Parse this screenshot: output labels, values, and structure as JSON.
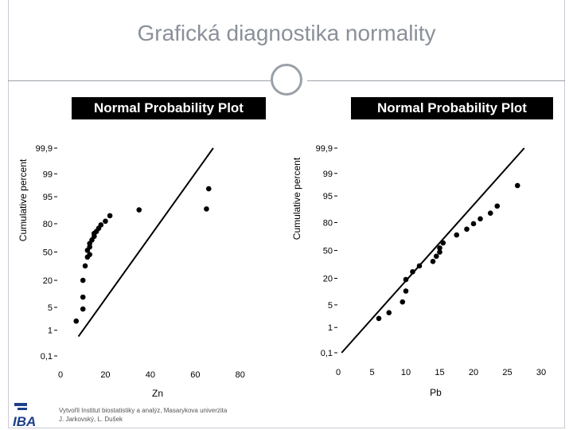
{
  "slide": {
    "title": "Grafická diagnostika normality",
    "footer_lines": [
      "Vytvořil Institut biostatistiky a analýz, Masarykova univerzita",
      "J. Jarkovský, L. Dušek"
    ],
    "logo_text": "IBA",
    "accent": "#9aa0a8"
  },
  "chart_data": [
    {
      "type": "scatter",
      "title": "Normal Probability Plot",
      "xlabel": "Zn",
      "ylabel": "Cumulative percent",
      "xlim": [
        0,
        90
      ],
      "x_ticks": [
        0,
        20,
        40,
        60,
        80
      ],
      "x_tick_labels": [
        "0",
        "20",
        "40",
        "60",
        "80"
      ],
      "y_ticks": [
        0.1,
        1,
        5,
        20,
        50,
        80,
        95,
        99,
        99.9
      ],
      "y_tick_labels": [
        "0,1",
        "1",
        "5",
        "20",
        "50",
        "80",
        "95",
        "99",
        "99,9"
      ],
      "y_scale": "normal-probability",
      "x": [
        7,
        10,
        10,
        10,
        11,
        12,
        13,
        12,
        13,
        13,
        14,
        15,
        15,
        16,
        17,
        18,
        20,
        22,
        35,
        65,
        66
      ],
      "y": [
        2,
        4.5,
        9,
        20,
        34,
        44,
        47,
        52,
        56,
        60,
        64,
        68,
        71,
        73,
        76,
        79,
        82,
        86,
        89.5,
        90,
        97
      ],
      "fit_line": {
        "x": [
          8,
          68
        ],
        "y": [
          0.6,
          99.9
        ]
      }
    },
    {
      "type": "scatter",
      "title": "Normal Probability Plot",
      "xlabel": "Pb",
      "ylabel": "Cumulative percent",
      "xlim": [
        0,
        30
      ],
      "x_ticks": [
        0,
        5,
        10,
        15,
        20,
        25,
        30
      ],
      "x_tick_labels": [
        "0",
        "5",
        "10",
        "15",
        "20",
        "25",
        "30"
      ],
      "y_ticks": [
        0.1,
        1,
        5,
        20,
        50,
        80,
        95,
        99,
        99.9
      ],
      "y_tick_labels": [
        "0,1",
        "1",
        "5",
        "20",
        "50",
        "80",
        "95",
        "99",
        "99,9"
      ],
      "y_scale": "normal-probability",
      "x": [
        6,
        7.5,
        9.5,
        10,
        10,
        11,
        12,
        14,
        14.5,
        15,
        15,
        15.5,
        17.5,
        19,
        20,
        21,
        22.5,
        23.5,
        26.5
      ],
      "y": [
        2,
        3,
        6,
        11,
        19,
        26,
        32,
        37,
        43,
        48,
        53,
        59,
        68,
        74,
        79,
        83,
        87,
        91,
        97.5
      ],
      "fit_line": {
        "x": [
          0.5,
          27.5
        ],
        "y": [
          0.1,
          99.9
        ]
      }
    }
  ]
}
